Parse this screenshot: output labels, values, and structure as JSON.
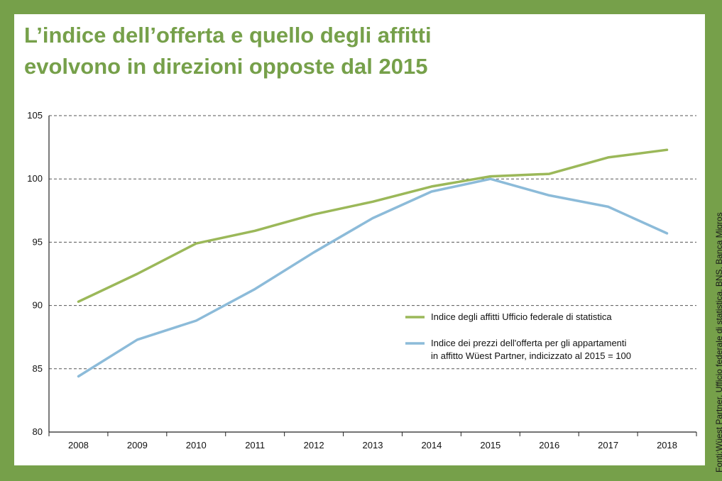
{
  "title_lines": [
    "L’indice dell’offerta e quello degli affitti",
    "evolvono in direzioni opposte dal 2015"
  ],
  "source": "Fonti:Wüest Partner, Ufficio federale di statistica, BNS, Banca Migros",
  "colors": {
    "background": "#76a04a",
    "title": "#76a04a",
    "series_rents": "#9bb859",
    "series_offer": "#8cbbd9",
    "grid": "#555555"
  },
  "chart_data": {
    "type": "line",
    "x": [
      "2008",
      "2009",
      "2010",
      "2011",
      "2012",
      "2013",
      "2014",
      "2015",
      "2016",
      "2017",
      "2018"
    ],
    "ylim": [
      80,
      105
    ],
    "yticks": [
      80,
      85,
      90,
      95,
      100,
      105
    ],
    "grid": "horizontal dashed",
    "legend_position": "bottom-right",
    "series": [
      {
        "name": "Indice degli affitti Ufficio federale di statistica",
        "legend_lines": [
          "Indice degli affitti Ufficio federale di statistica"
        ],
        "color": "#9bb859",
        "values": [
          90.3,
          92.5,
          94.9,
          95.9,
          97.2,
          98.2,
          99.4,
          100.2,
          100.4,
          101.7,
          102.3
        ]
      },
      {
        "name": "Indice dei prezzi dell'offerta per gli appartamenti in affitto Wüest Partner, indicizzato al 2015 = 100",
        "legend_lines": [
          "Indice dei prezzi dell'offerta per gli appartamenti",
          "in affitto Wüest Partner, indicizzato al 2015 = 100"
        ],
        "color": "#8cbbd9",
        "values": [
          84.4,
          87.3,
          88.8,
          91.3,
          94.2,
          96.9,
          99.0,
          100.0,
          98.7,
          97.8,
          95.7
        ]
      }
    ]
  }
}
